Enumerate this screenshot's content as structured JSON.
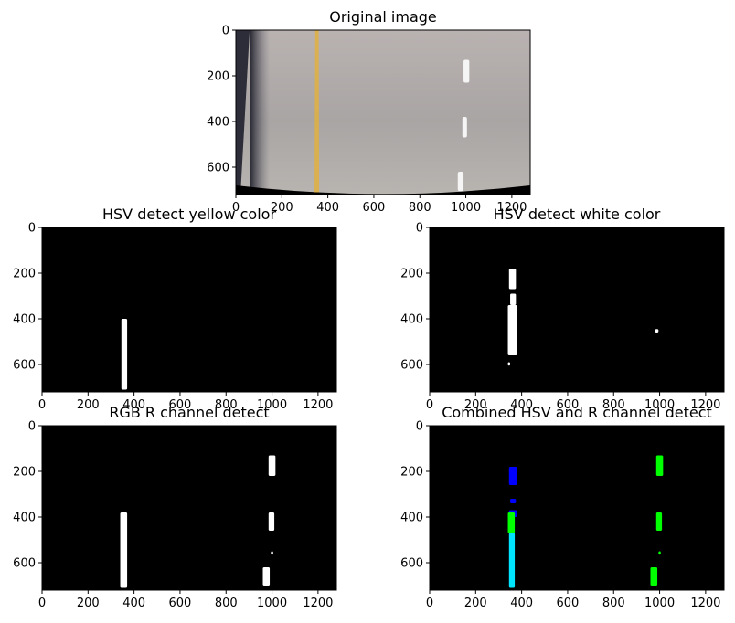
{
  "chart_data": [
    {
      "type": "image",
      "title": "Original image",
      "xlim": [
        0,
        1280
      ],
      "ylim": [
        720,
        0
      ],
      "xticks": [
        0,
        200,
        400,
        600,
        800,
        1000,
        1200
      ],
      "yticks": [
        0,
        200,
        400,
        600
      ],
      "content": "road-photo",
      "colors": {
        "road": "#b3aeab",
        "yellow_line": "#e0b040",
        "white_line": "#f5f5f5",
        "left_edge": "#2c2d38"
      }
    },
    {
      "type": "image",
      "title": "HSV detect yellow color",
      "xlim": [
        0,
        1280
      ],
      "ylim": [
        720,
        0
      ],
      "xticks": [
        0,
        200,
        400,
        600,
        800,
        1000,
        1200
      ],
      "yticks": [
        0,
        200,
        400,
        600
      ],
      "background": "#000000",
      "marks": [
        {
          "color": "#ffffff",
          "x_range": [
            345,
            370
          ],
          "y_range": [
            400,
            710
          ]
        }
      ]
    },
    {
      "type": "image",
      "title": "HSV detect white color",
      "xlim": [
        0,
        1280
      ],
      "ylim": [
        720,
        0
      ],
      "xticks": [
        0,
        200,
        400,
        600,
        800,
        1000,
        1200
      ],
      "yticks": [
        0,
        200,
        400,
        600
      ],
      "background": "#000000",
      "marks": [
        {
          "color": "#ffffff",
          "x_range": [
            345,
            375
          ],
          "y_range": [
            180,
            270
          ]
        },
        {
          "color": "#ffffff",
          "x_range": [
            350,
            375
          ],
          "y_range": [
            290,
            340
          ]
        },
        {
          "color": "#ffffff",
          "x_range": [
            340,
            380
          ],
          "y_range": [
            340,
            560
          ]
        },
        {
          "color": "#ffffff",
          "x_range": [
            980,
            995
          ],
          "y_range": [
            445,
            460
          ]
        },
        {
          "color": "#ffffff",
          "x_range": [
            340,
            350
          ],
          "y_range": [
            590,
            605
          ]
        }
      ]
    },
    {
      "type": "image",
      "title": "RGB R channel detect",
      "xlim": [
        0,
        1280
      ],
      "ylim": [
        720,
        0
      ],
      "xticks": [
        0,
        200,
        400,
        600,
        800,
        1000,
        1200
      ],
      "yticks": [
        0,
        200,
        400,
        600
      ],
      "background": "#000000",
      "marks": [
        {
          "color": "#ffffff",
          "x_range": [
            340,
            370
          ],
          "y_range": [
            380,
            710
          ]
        },
        {
          "color": "#ffffff",
          "x_range": [
            985,
            1015
          ],
          "y_range": [
            130,
            220
          ]
        },
        {
          "color": "#ffffff",
          "x_range": [
            985,
            1010
          ],
          "y_range": [
            380,
            460
          ]
        },
        {
          "color": "#ffffff",
          "x_range": [
            995,
            1005
          ],
          "y_range": [
            550,
            565
          ]
        },
        {
          "color": "#ffffff",
          "x_range": [
            960,
            990
          ],
          "y_range": [
            620,
            700
          ]
        }
      ]
    },
    {
      "type": "image",
      "title": "Combined HSV and R channel detect",
      "xlim": [
        0,
        1280
      ],
      "ylim": [
        720,
        0
      ],
      "xticks": [
        0,
        200,
        400,
        600,
        800,
        1000,
        1200
      ],
      "yticks": [
        0,
        200,
        400,
        600
      ],
      "background": "#000000",
      "marks": [
        {
          "color": "#0000ff",
          "x_range": [
            345,
            380
          ],
          "y_range": [
            180,
            260
          ]
        },
        {
          "color": "#0000ff",
          "x_range": [
            350,
            375
          ],
          "y_range": [
            320,
            340
          ]
        },
        {
          "color": "#0000ff",
          "x_range": [
            345,
            380
          ],
          "y_range": [
            370,
            400
          ]
        },
        {
          "color": "#00ff00",
          "x_range": [
            340,
            370
          ],
          "y_range": [
            380,
            470
          ]
        },
        {
          "color": "#00e5ff",
          "x_range": [
            345,
            370
          ],
          "y_range": [
            470,
            710
          ]
        },
        {
          "color": "#00ff00",
          "x_range": [
            985,
            1015
          ],
          "y_range": [
            130,
            220
          ]
        },
        {
          "color": "#00ff00",
          "x_range": [
            985,
            1010
          ],
          "y_range": [
            380,
            460
          ]
        },
        {
          "color": "#00ff00",
          "x_range": [
            995,
            1005
          ],
          "y_range": [
            550,
            565
          ]
        },
        {
          "color": "#00ff00",
          "x_range": [
            960,
            990
          ],
          "y_range": [
            620,
            700
          ]
        }
      ]
    }
  ]
}
